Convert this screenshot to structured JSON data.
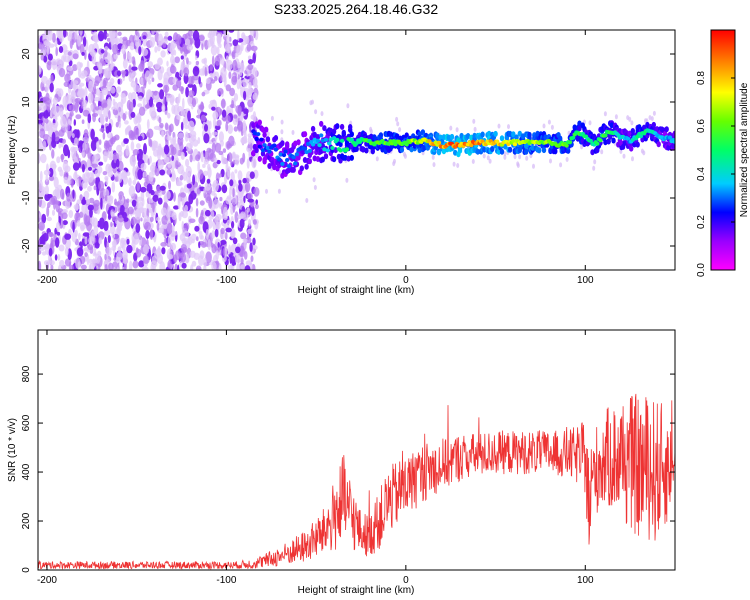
{
  "title": "S233.2025.264.18.46.G32",
  "chart_data": [
    {
      "type": "heatmap",
      "name": "spectrogram",
      "xlabel": "Height of straight line (km)",
      "ylabel": "Frequency (Hz)",
      "xlim": [
        -205,
        150
      ],
      "ylim": [
        -25,
        25
      ],
      "xticks": [
        -200,
        -100,
        0,
        100
      ],
      "yticks": [
        -20,
        -10,
        0,
        10,
        20
      ],
      "ridge": {
        "x": [
          -85,
          -80,
          -75,
          -70,
          -65,
          -60,
          -55,
          -50,
          -45,
          -40,
          -35,
          -30,
          -25,
          -20,
          -10,
          0,
          10,
          20,
          30,
          40,
          50,
          60,
          70,
          80,
          90,
          95,
          100,
          105,
          110,
          115,
          120,
          125,
          130,
          135,
          140,
          145,
          150
        ],
        "freq": [
          3,
          1.5,
          0,
          -1.5,
          -2,
          -1,
          0,
          2,
          1.5,
          1,
          1.5,
          1,
          2,
          1.5,
          1.5,
          1.5,
          2,
          1,
          1,
          1.5,
          1.5,
          1.5,
          1.5,
          1.5,
          1,
          4,
          3,
          1,
          3,
          4,
          2.5,
          2,
          3,
          4,
          3,
          2.5,
          2
        ],
        "amp": [
          0.25,
          0.28,
          0.3,
          0.3,
          0.28,
          0.3,
          0.32,
          0.35,
          0.38,
          0.45,
          0.5,
          0.5,
          0.5,
          0.55,
          0.6,
          0.65,
          0.7,
          0.85,
          0.9,
          0.85,
          0.8,
          0.75,
          0.7,
          0.65,
          0.6,
          0.55,
          0.5,
          0.45,
          0.55,
          0.5,
          0.4,
          0.35,
          0.5,
          0.45,
          0.4,
          0.35,
          0.35
        ]
      },
      "colorbar": {
        "label": "Normalized spectral amplitude",
        "range": [
          0,
          1
        ],
        "ticks": [
          0.0,
          0.2,
          0.4,
          0.6,
          0.8
        ],
        "tick_labels": [
          "0.0",
          "0.2",
          "0.4",
          "0.6",
          "0.8"
        ]
      }
    },
    {
      "type": "line",
      "name": "snr",
      "xlabel": "Height of straight line (km)",
      "ylabel": "SNR (10 * v/v)",
      "xlim": [
        -205,
        150
      ],
      "ylim": [
        0,
        980
      ],
      "xticks": [
        -200,
        -100,
        0,
        100
      ],
      "yticks": [
        0,
        200,
        400,
        600,
        800
      ],
      "color": "#ee3333",
      "envelope": {
        "x": [
          -205,
          -180,
          -150,
          -120,
          -95,
          -85,
          -75,
          -65,
          -55,
          -45,
          -40,
          -35,
          -30,
          -25,
          -20,
          -15,
          -10,
          0,
          10,
          20,
          30,
          40,
          50,
          60,
          70,
          80,
          90,
          95,
          100,
          102,
          105,
          110,
          115,
          120,
          125,
          130,
          135,
          140,
          145,
          150
        ],
        "mean": [
          20,
          20,
          20,
          20,
          20,
          25,
          45,
          70,
          100,
          160,
          220,
          280,
          220,
          150,
          140,
          200,
          280,
          340,
          400,
          430,
          460,
          470,
          480,
          480,
          480,
          480,
          470,
          470,
          460,
          250,
          400,
          450,
          460,
          450,
          440,
          420,
          420,
          400,
          420,
          430
        ],
        "amp": [
          15,
          15,
          15,
          15,
          15,
          20,
          35,
          50,
          70,
          100,
          150,
          200,
          140,
          90,
          90,
          120,
          140,
          130,
          120,
          110,
          100,
          90,
          90,
          90,
          90,
          90,
          100,
          120,
          150,
          250,
          180,
          200,
          220,
          250,
          280,
          300,
          300,
          300,
          250,
          80
        ]
      }
    }
  ]
}
